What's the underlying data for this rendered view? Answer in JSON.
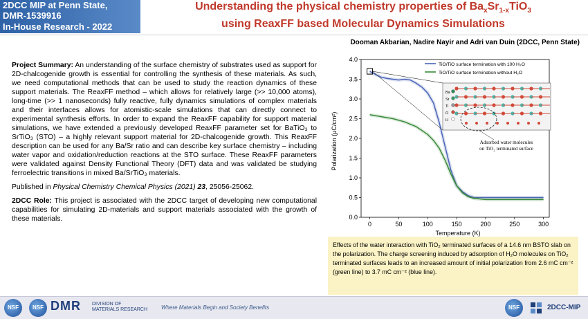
{
  "badge": {
    "line1": "2DCC MIP at Penn State,",
    "line2": "DMR-1539916",
    "line3": "In-House Research - 2022"
  },
  "title": {
    "line1_pre": "Understanding the physical chemistry properties of Ba",
    "sub1": "x",
    "mid1": "Sr",
    "sub2": "1-x",
    "mid2": "TiO",
    "sub3": "3",
    "line2": "using ReaxFF based Molecular Dynamics Simulations"
  },
  "authors": "Dooman Akbarian, Nadire Nayir and Adri van Duin (2DCC, Penn State)",
  "summary": {
    "label": "Project Summary:",
    "text": " An understanding of the surface chemistry of substrates used as support for 2D-chalcogenide growth is essential for controlling the synthesis of these materials. As such, we need computational methods that can be used to study the reaction dynamics of these support materials. The ReaxFF method – which allows for relatively large (>> 10,000 atoms), long-time (>> 1 nanoseconds) fully reactive, fully dynamics simulations of complex materials and their interfaces allows for atomistic-scale simulations that can directly connect to experimental synthesis efforts. In order to expand the ReaxFF capability for support material simulations, we have extended a previously developed ReaxFF parameter set for BaTiO₃ to SrTiO₃ (STO) – a highly relevant support material for 2D-chalcogenide growth. This ReaxFF description can be used for any Ba/Sr ratio and can describe key surface chemistry – including water vapor and oxidation/reduction reactions at the STO surface. These ReaxFF parameters were validated against Density Functional Theory (DFT) data and was validated be studying ferroelectric transitions in mixed Ba/SrTiO₃ materials."
  },
  "publication": {
    "pre": "Published in ",
    "journal": "Physical Chemistry Chemical Physics (2021) ",
    "vol": "23",
    "pages": ", 25056-25062."
  },
  "role": {
    "label": "2DCC Role:",
    "text": " This project is associated with the 2DCC target of developing new computational capabilities for simulating 2D-materials and support materials associated with the growth of these materials."
  },
  "caption": "Effects of the water interaction with TiO₂ terminated surfaces of a 14.6 nm BSTO slab on the polarization. The charge screening induced by adsorption of H₂O molecules on TiO₂ terminated surfaces leads to an increased amount of initial polarization from 2.6 mC cm⁻² (green line) to 3.7 mC cm⁻² (blue line).",
  "inset": {
    "legend": [
      "Ba",
      "Sr",
      "Ti",
      "O",
      "H"
    ],
    "label_line1": "Adsorbed water molecules",
    "label_line2": "on TiO₂ terminated surface"
  },
  "footer": {
    "nsf": "NSF",
    "dmr": "DMR",
    "dmr_sub1": "DIVISION OF",
    "dmr_sub2": "MATERIALS RESEARCH",
    "tagline": "Where Materials Begin and Society Benefits",
    "mip": "2DCC-MIP"
  },
  "chart_data": {
    "type": "line",
    "xlabel": "Temperature (K)",
    "ylabel": "Polarization (μC/cm²)",
    "xlim": [
      -15,
      310
    ],
    "ylim": [
      0,
      4.0
    ],
    "xticks": [
      0,
      50,
      100,
      150,
      200,
      250,
      300
    ],
    "yticks": [
      0.0,
      0.5,
      1.0,
      1.5,
      2.0,
      2.5,
      3.0,
      3.5,
      4.0
    ],
    "legend_position": "top-right",
    "series": [
      {
        "name": "TiO/TiO surface termination with 100 H₂O",
        "color": "#4a64b8",
        "x": [
          0,
          10,
          20,
          30,
          40,
          50,
          60,
          70,
          80,
          90,
          100,
          110,
          120,
          130,
          140,
          150,
          160,
          170,
          180,
          200,
          220,
          250,
          280,
          300
        ],
        "y": [
          3.7,
          3.62,
          3.55,
          3.52,
          3.5,
          3.48,
          3.5,
          3.48,
          3.4,
          3.3,
          3.15,
          2.9,
          2.4,
          1.8,
          1.2,
          0.8,
          0.65,
          0.55,
          0.5,
          0.5,
          0.5,
          0.5,
          0.5,
          0.5
        ]
      },
      {
        "name": "TiO/TiO surface termination without H₂O",
        "color": "#3a8a3a",
        "x": [
          0,
          20,
          40,
          60,
          80,
          100,
          110,
          120,
          130,
          140,
          150,
          160,
          170,
          180,
          200,
          220,
          250,
          280,
          300
        ],
        "y": [
          2.6,
          2.55,
          2.5,
          2.42,
          2.3,
          2.1,
          1.95,
          1.75,
          1.45,
          1.1,
          0.8,
          0.62,
          0.52,
          0.48,
          0.45,
          0.45,
          0.45,
          0.45,
          0.45
        ]
      }
    ]
  }
}
